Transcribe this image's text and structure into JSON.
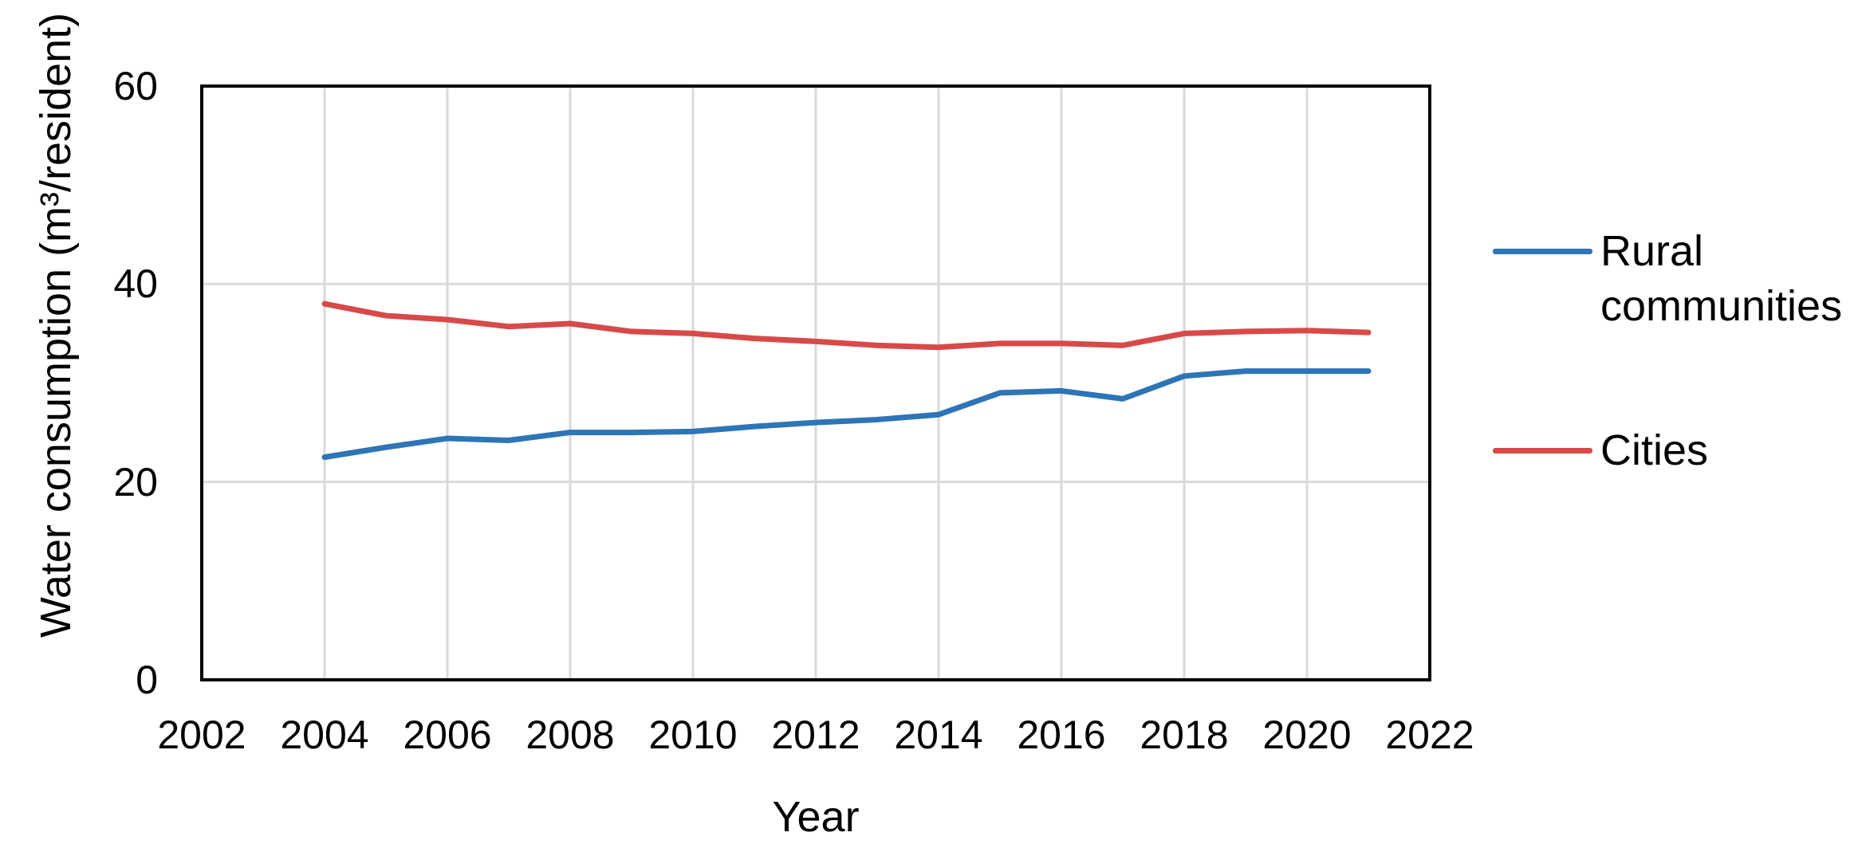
{
  "chart_data": {
    "type": "line",
    "title": "",
    "xlabel": "Year",
    "ylabel": "Water consumption (m³/resident)",
    "xlim": [
      2002,
      2022
    ],
    "ylim": [
      0,
      60
    ],
    "x_ticks": [
      2002,
      2004,
      2006,
      2008,
      2010,
      2012,
      2014,
      2016,
      2018,
      2020,
      2022
    ],
    "y_ticks": [
      0,
      20,
      40,
      60
    ],
    "grid": true,
    "grid_color": "#D9D9D9",
    "axis_color": "#000000",
    "legend_position": "right",
    "x": [
      2004,
      2005,
      2006,
      2007,
      2008,
      2009,
      2010,
      2011,
      2012,
      2013,
      2014,
      2015,
      2016,
      2017,
      2018,
      2019,
      2020,
      2021
    ],
    "series": [
      {
        "name": "Rural communities",
        "color": "#2E75B6",
        "values": [
          22.5,
          23.5,
          24.4,
          24.2,
          25.0,
          25.0,
          25.1,
          25.6,
          26.0,
          26.3,
          26.8,
          29.0,
          29.2,
          28.4,
          30.7,
          31.2,
          31.2,
          31.2
        ]
      },
      {
        "name": "Cities",
        "color": "#D74A49",
        "values": [
          38.0,
          36.8,
          36.4,
          35.7,
          36.0,
          35.2,
          35.0,
          34.5,
          34.2,
          33.8,
          33.6,
          34.0,
          34.0,
          33.8,
          35.0,
          35.2,
          35.3,
          35.1
        ]
      }
    ]
  }
}
